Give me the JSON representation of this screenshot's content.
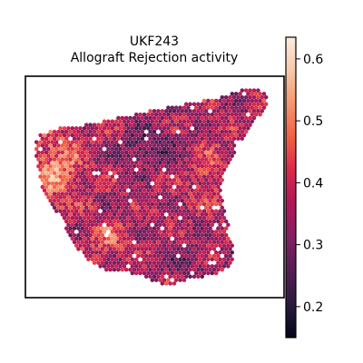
{
  "chart_data": {
    "type": "scatter",
    "title_line1": "UKF243",
    "title_line2": "Allograft Rejection activity",
    "xlabel": "",
    "ylabel": "",
    "grid": false,
    "colormap": "rocket",
    "colorbar": {
      "vmin": 0.15,
      "vmax": 0.635,
      "ticks": [
        0.2,
        0.3,
        0.4,
        0.5,
        0.6
      ],
      "tick_labels": [
        "0.2",
        "0.3",
        "0.4",
        "0.5",
        "0.6"
      ]
    },
    "colormap_stops": [
      "#03051a",
      "#2b1a3e",
      "#551d54",
      "#822062",
      "#ae1759",
      "#d9284b",
      "#f06043",
      "#f5966f",
      "#f7c9aa",
      "#faebdd"
    ],
    "description_of_points": "spatial spots in hexagonal grid forming tissue section; values range 0.15-0.63"
  }
}
